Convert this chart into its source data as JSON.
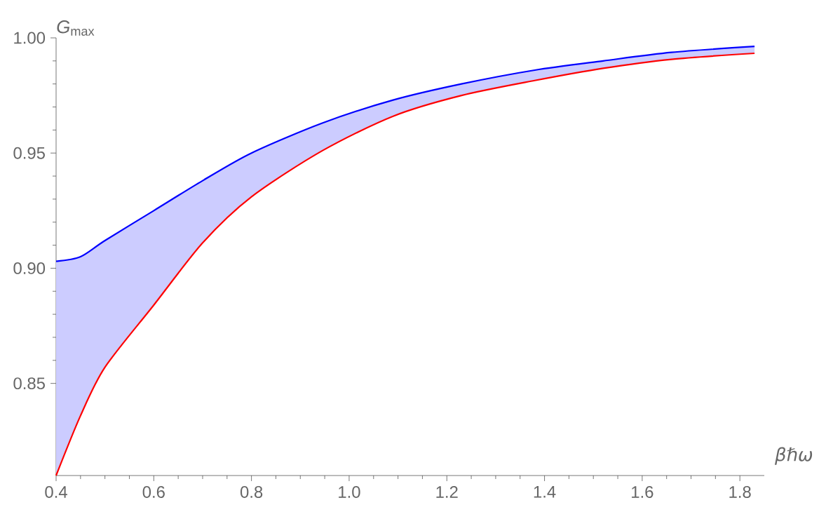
{
  "chart_data": {
    "type": "line",
    "xlabel": "βℏω",
    "ylabel": "*G*$_{max}$",
    "xlim": [
      0.4,
      1.85
    ],
    "ylim": [
      0.81,
      1.0
    ],
    "xticks": [
      0.4,
      0.6,
      0.8,
      {
        "value": 1.0,
        "label": "1.0"
      },
      1.2,
      1.4,
      1.6,
      1.8
    ],
    "yticks": [
      0.85,
      {
        "value": 0.9,
        "label": "0.90"
      },
      0.95,
      {
        "value": 1.0,
        "label": "1.00"
      }
    ],
    "marker": "none",
    "line_style": "solid",
    "series": [
      {
        "color": "#0000ff",
        "x": [
          0.4,
          0.45,
          0.5,
          0.6,
          0.7,
          0.8,
          0.945,
          1.09,
          1.23,
          1.38,
          1.52,
          1.66,
          1.83
        ],
        "values": [
          0.903,
          0.905,
          0.912,
          0.925,
          0.938,
          0.95,
          0.963,
          0.973,
          0.98,
          0.986,
          0.99,
          0.9937,
          0.9963
        ],
        "lower": [
          0.81,
          0.836,
          0.857,
          0.884,
          0.911,
          0.931,
          0.951,
          0.966,
          0.975,
          0.9815,
          0.9868,
          0.9907,
          0.9933
        ],
        "upper": [
          0.903,
          0.905,
          0.912,
          0.925,
          0.938,
          0.95,
          0.963,
          0.973,
          0.98,
          0.986,
          0.99,
          0.9937,
          0.9963
        ]
      },
      {
        "color": "#ff0000",
        "x": [
          0.4,
          0.45,
          0.5,
          0.6,
          0.7,
          0.8,
          0.945,
          1.09,
          1.23,
          1.38,
          1.52,
          1.66,
          1.83
        ],
        "values": [
          0.81,
          0.836,
          0.857,
          0.884,
          0.911,
          0.931,
          0.951,
          0.966,
          0.975,
          0.9815,
          0.9868,
          0.9907,
          0.9933
        ]
      }
    ]
  }
}
